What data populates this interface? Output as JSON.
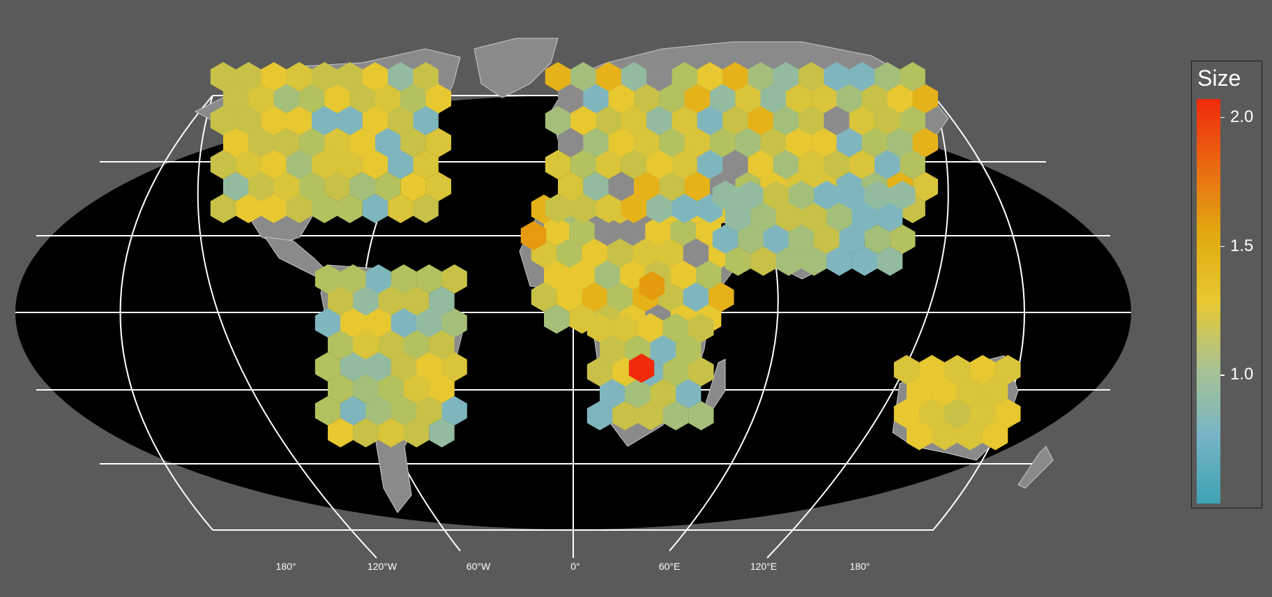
{
  "map": {
    "lon_labels": [
      "180°",
      "120°W",
      "60°W",
      "0°",
      "60°E",
      "120°E",
      "180°"
    ]
  },
  "legend": {
    "title": "Size",
    "ticks": [
      {
        "value": 2.0,
        "label": "2.0"
      },
      {
        "value": 1.5,
        "label": "1.5"
      },
      {
        "value": 1.0,
        "label": "1.0"
      }
    ],
    "min": 0.5,
    "max": 2.07,
    "colors": [
      "#3ea2b4",
      "#76b5c5",
      "#a9c293",
      "#e8c830",
      "#e0a90f",
      "#ea6a12",
      "#f02a0a"
    ]
  }
}
